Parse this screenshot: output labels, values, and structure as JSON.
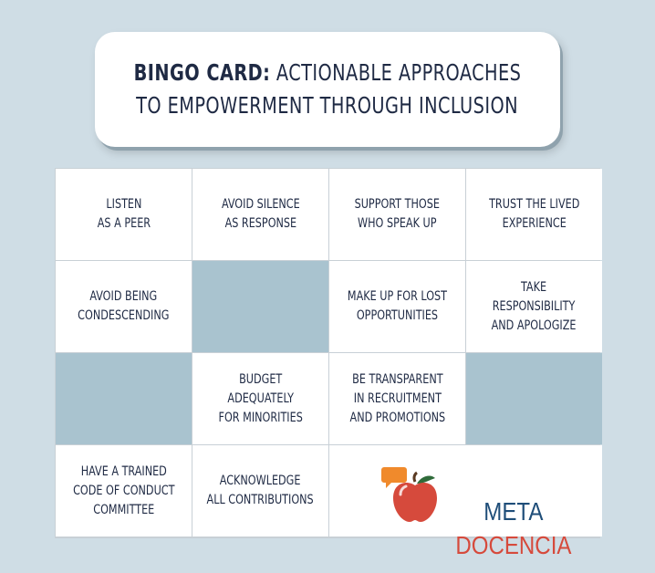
{
  "header": {
    "title_bold": "BINGO CARD:",
    "title_rest": " ACTIONABLE APPROACHES",
    "title_line2": "TO EMPOWERMENT THROUGH INCLUSION"
  },
  "grid": {
    "cells": [
      {
        "text": "LISTEN\nAS A PEER"
      },
      {
        "text": "AVOID SILENCE\nAS RESPONSE"
      },
      {
        "text": "SUPPORT THOSE\nWHO SPEAK UP"
      },
      {
        "text": "TRUST THE LIVED\nEXPERIENCE"
      },
      {
        "text": "AVOID BEING\nCONDESCENDING"
      },
      {
        "text": ""
      },
      {
        "text": "MAKE UP FOR LOST\nOPPORTUNITIES"
      },
      {
        "text": "TAKE\nRESPONSIBILITY\nAND APOLOGIZE"
      },
      {
        "text": ""
      },
      {
        "text": "BUDGET\nADEQUATELY\nFOR MINORITIES"
      },
      {
        "text": "BE TRANSPARENT\nIN RECRUITMENT\nAND PROMOTIONS"
      },
      {
        "text": ""
      },
      {
        "text": "HAVE A TRAINED\nCODE OF CONDUCT\nCOMMITTEE"
      },
      {
        "text": "ACKNOWLEDGE\nALL CONTRIBUTIONS"
      }
    ]
  },
  "logo": {
    "line1": "Meta",
    "line2": "Docencia",
    "colors": {
      "blue": "#1f4e79",
      "red": "#d64a3c",
      "orange": "#f08a2c",
      "leaf": "#2f6b3a"
    }
  },
  "colors": {
    "background": "#cfdde5",
    "empty_cell": "#a9c3cf",
    "text": "#1f2a44"
  }
}
